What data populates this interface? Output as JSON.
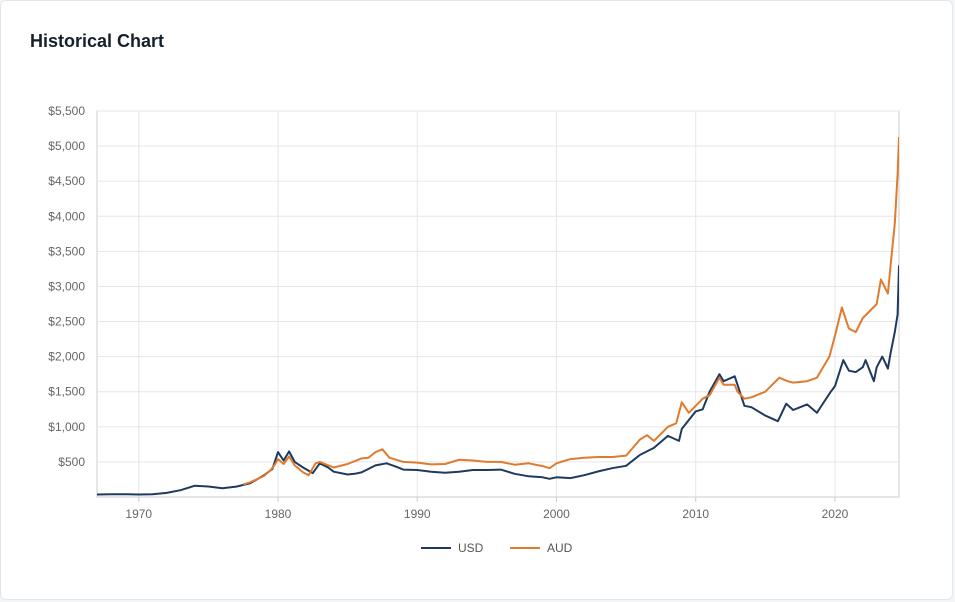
{
  "card": {
    "title": "Historical Chart"
  },
  "colors": {
    "usd": "#1f3a5f",
    "aud": "#e07b2e",
    "grid": "#e6e6e6",
    "axis": "#cccccc"
  },
  "chart_data": {
    "type": "line",
    "title": "Historical Chart",
    "xlabel": "",
    "ylabel": "",
    "xlim": [
      1967,
      2024.6
    ],
    "ylim": [
      0,
      5500
    ],
    "x_ticks": [
      1970,
      1980,
      1990,
      2000,
      2010,
      2020
    ],
    "x_tick_labels": [
      "1970",
      "1980",
      "1990",
      "2000",
      "2010",
      "2020"
    ],
    "y_ticks": [
      500,
      1000,
      1500,
      2000,
      2500,
      3000,
      3500,
      4000,
      4500,
      5000,
      5500
    ],
    "y_tick_labels": [
      "$500",
      "$1,000",
      "$1,500",
      "$2,000",
      "$2,500",
      "$3,000",
      "$3,500",
      "$4,000",
      "$4,500",
      "$5,000",
      "$5,500"
    ],
    "grid": true,
    "legend_position": "bottom-center",
    "series": [
      {
        "name": "USD",
        "color": "#1f3a5f",
        "points": [
          [
            1967,
            35
          ],
          [
            1968,
            38
          ],
          [
            1969,
            40
          ],
          [
            1970,
            36
          ],
          [
            1971,
            40
          ],
          [
            1972,
            58
          ],
          [
            1973,
            97
          ],
          [
            1974,
            160
          ],
          [
            1975,
            150
          ],
          [
            1976,
            125
          ],
          [
            1977,
            148
          ],
          [
            1978,
            195
          ],
          [
            1979,
            310
          ],
          [
            1979.6,
            400
          ],
          [
            1980.0,
            640
          ],
          [
            1980.4,
            520
          ],
          [
            1980.8,
            650
          ],
          [
            1981.2,
            500
          ],
          [
            1981.8,
            420
          ],
          [
            1982.5,
            340
          ],
          [
            1983.0,
            480
          ],
          [
            1983.6,
            420
          ],
          [
            1984,
            360
          ],
          [
            1985,
            320
          ],
          [
            1985.5,
            330
          ],
          [
            1986,
            350
          ],
          [
            1986.5,
            400
          ],
          [
            1987,
            450
          ],
          [
            1987.8,
            480
          ],
          [
            1988.5,
            430
          ],
          [
            1989,
            390
          ],
          [
            1990,
            385
          ],
          [
            1991,
            360
          ],
          [
            1992,
            345
          ],
          [
            1993,
            360
          ],
          [
            1994,
            385
          ],
          [
            1995,
            385
          ],
          [
            1996,
            390
          ],
          [
            1997,
            330
          ],
          [
            1998,
            295
          ],
          [
            1999,
            280
          ],
          [
            1999.5,
            260
          ],
          [
            2000,
            280
          ],
          [
            2001,
            270
          ],
          [
            2002,
            310
          ],
          [
            2003,
            365
          ],
          [
            2004,
            410
          ],
          [
            2005,
            445
          ],
          [
            2006,
            600
          ],
          [
            2007,
            700
          ],
          [
            2008,
            870
          ],
          [
            2008.8,
            800
          ],
          [
            2009,
            970
          ],
          [
            2010,
            1220
          ],
          [
            2010.5,
            1250
          ],
          [
            2011,
            1500
          ],
          [
            2011.7,
            1750
          ],
          [
            2012,
            1650
          ],
          [
            2012.8,
            1720
          ],
          [
            2013,
            1600
          ],
          [
            2013.5,
            1300
          ],
          [
            2014,
            1280
          ],
          [
            2015,
            1160
          ],
          [
            2015.9,
            1080
          ],
          [
            2016.5,
            1330
          ],
          [
            2017,
            1240
          ],
          [
            2017.5,
            1280
          ],
          [
            2018,
            1320
          ],
          [
            2018.7,
            1200
          ],
          [
            2019,
            1290
          ],
          [
            2019.7,
            1500
          ],
          [
            2020,
            1580
          ],
          [
            2020.6,
            1950
          ],
          [
            2021,
            1800
          ],
          [
            2021.5,
            1780
          ],
          [
            2022,
            1850
          ],
          [
            2022.2,
            1950
          ],
          [
            2022.8,
            1650
          ],
          [
            2023,
            1850
          ],
          [
            2023.4,
            2000
          ],
          [
            2023.8,
            1830
          ],
          [
            2024,
            2050
          ],
          [
            2024.3,
            2350
          ],
          [
            2024.5,
            2600
          ],
          [
            2024.6,
            3300
          ]
        ]
      },
      {
        "name": "AUD",
        "color": "#e07b2e",
        "points": [
          [
            1977.5,
            180
          ],
          [
            1978,
            210
          ],
          [
            1979,
            300
          ],
          [
            1979.5,
            390
          ],
          [
            1979.8,
            470
          ],
          [
            1980.0,
            540
          ],
          [
            1980.4,
            470
          ],
          [
            1980.8,
            580
          ],
          [
            1981.2,
            450
          ],
          [
            1981.8,
            350
          ],
          [
            1982.2,
            310
          ],
          [
            1982.7,
            480
          ],
          [
            1983,
            500
          ],
          [
            1984,
            420
          ],
          [
            1985,
            470
          ],
          [
            1986,
            550
          ],
          [
            1986.5,
            560
          ],
          [
            1987,
            640
          ],
          [
            1987.5,
            680
          ],
          [
            1988,
            560
          ],
          [
            1989,
            500
          ],
          [
            1990,
            490
          ],
          [
            1991,
            465
          ],
          [
            1992,
            470
          ],
          [
            1993,
            530
          ],
          [
            1994,
            520
          ],
          [
            1995,
            500
          ],
          [
            1996,
            500
          ],
          [
            1997,
            460
          ],
          [
            1998,
            480
          ],
          [
            1999,
            440
          ],
          [
            1999.5,
            410
          ],
          [
            2000,
            480
          ],
          [
            2001,
            540
          ],
          [
            2002,
            560
          ],
          [
            2003,
            570
          ],
          [
            2004,
            570
          ],
          [
            2005,
            590
          ],
          [
            2006,
            820
          ],
          [
            2006.5,
            880
          ],
          [
            2007,
            800
          ],
          [
            2008,
            1000
          ],
          [
            2008.6,
            1050
          ],
          [
            2009,
            1350
          ],
          [
            2009.5,
            1200
          ],
          [
            2010,
            1300
          ],
          [
            2010.5,
            1400
          ],
          [
            2011,
            1450
          ],
          [
            2011.7,
            1700
          ],
          [
            2012,
            1600
          ],
          [
            2012.8,
            1600
          ],
          [
            2013,
            1500
          ],
          [
            2013.5,
            1400
          ],
          [
            2014,
            1420
          ],
          [
            2015,
            1500
          ],
          [
            2016,
            1700
          ],
          [
            2016.6,
            1650
          ],
          [
            2017,
            1630
          ],
          [
            2018,
            1650
          ],
          [
            2018.7,
            1700
          ],
          [
            2019,
            1800
          ],
          [
            2019.6,
            2000
          ],
          [
            2020,
            2300
          ],
          [
            2020.5,
            2700
          ],
          [
            2021,
            2400
          ],
          [
            2021.5,
            2350
          ],
          [
            2022,
            2550
          ],
          [
            2022.5,
            2650
          ],
          [
            2023,
            2750
          ],
          [
            2023.3,
            3100
          ],
          [
            2023.8,
            2900
          ],
          [
            2024,
            3300
          ],
          [
            2024.3,
            3900
          ],
          [
            2024.5,
            4600
          ],
          [
            2024.6,
            5130
          ]
        ]
      }
    ]
  }
}
